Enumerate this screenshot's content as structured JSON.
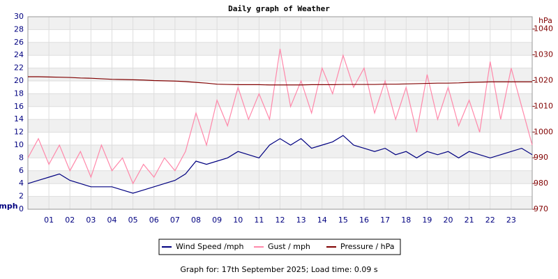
{
  "chart_data": {
    "type": "line",
    "title": "Daily graph of Weather",
    "ylabel": "mph",
    "y2label": "hPa",
    "caption": "Graph for: 17th September 2025; Load time: 0.09 s",
    "x": [
      0,
      0.5,
      1,
      1.5,
      2,
      2.5,
      3,
      3.5,
      4,
      4.5,
      5,
      5.5,
      6,
      6.5,
      7,
      7.5,
      8,
      8.5,
      9,
      9.5,
      10,
      10.5,
      11,
      11.5,
      12,
      12.5,
      13,
      13.5,
      14,
      14.5,
      15,
      15.5,
      16,
      16.5,
      17,
      17.5,
      18,
      18.5,
      19,
      19.5,
      20,
      20.5,
      21,
      21.5,
      22,
      22.5,
      23,
      23.5,
      24
    ],
    "xlim": [
      0,
      24
    ],
    "xticks": [
      {
        "value": 1,
        "label": "01"
      },
      {
        "value": 2,
        "label": "02"
      },
      {
        "value": 3,
        "label": "03"
      },
      {
        "value": 4,
        "label": "04"
      },
      {
        "value": 5,
        "label": "05"
      },
      {
        "value": 6,
        "label": "06"
      },
      {
        "value": 7,
        "label": "07"
      },
      {
        "value": 8,
        "label": "08"
      },
      {
        "value": 9,
        "label": "09"
      },
      10,
      11,
      12,
      13,
      14,
      15,
      16,
      17,
      18,
      19,
      20,
      21,
      22,
      23
    ],
    "ylim": [
      0,
      30
    ],
    "yticks": [
      0,
      2,
      4,
      6,
      8,
      10,
      12,
      14,
      16,
      18,
      20,
      22,
      24,
      26,
      28,
      30
    ],
    "y2lim": [
      970,
      1044.8
    ],
    "y2ticks": [
      970,
      980,
      990,
      1000,
      1010,
      1020,
      1030,
      1040
    ],
    "grid": true,
    "series": [
      {
        "name": "Wind Speed /mph",
        "color": "#000080",
        "values": [
          4,
          4.5,
          5,
          5.5,
          4.5,
          4,
          3.5,
          3.5,
          3.5,
          3,
          2.5,
          3,
          3.5,
          4,
          4.5,
          5.5,
          7.5,
          7,
          7.5,
          8,
          9,
          8.5,
          8,
          10,
          11,
          10,
          11,
          9.5,
          10,
          10.5,
          11.5,
          10,
          9.5,
          9,
          9.5,
          8.5,
          9,
          8,
          9,
          8.5,
          9,
          8,
          9,
          8.5,
          8,
          8.5,
          9,
          9.5,
          8.5
        ]
      },
      {
        "name": "Gust / mph",
        "color": "#ff88aa",
        "values": [
          8,
          11,
          7,
          10,
          6,
          9,
          5,
          10,
          6,
          8,
          4,
          7,
          5,
          8,
          6,
          9,
          15,
          10,
          17,
          13,
          19,
          14,
          18,
          14,
          25,
          16,
          20,
          15,
          22,
          18,
          24,
          19,
          22,
          15,
          20,
          14,
          19,
          12,
          21,
          14,
          19,
          13,
          17,
          12,
          23,
          14,
          22,
          16,
          10
        ]
      },
      {
        "name": "Pressure / hPa",
        "color": "#800000",
        "axis": "y2",
        "values": [
          1021.5,
          1021.5,
          1021.4,
          1021.3,
          1021.2,
          1021,
          1020.9,
          1020.7,
          1020.5,
          1020.4,
          1020.3,
          1020.2,
          1020,
          1019.9,
          1019.8,
          1019.6,
          1019.3,
          1019,
          1018.6,
          1018.5,
          1018.4,
          1018.4,
          1018.4,
          1018.3,
          1018.3,
          1018.3,
          1018.3,
          1018.4,
          1018.4,
          1018.4,
          1018.5,
          1018.5,
          1018.5,
          1018.5,
          1018.6,
          1018.6,
          1018.7,
          1018.8,
          1018.9,
          1019,
          1019,
          1019.1,
          1019.3,
          1019.4,
          1019.5,
          1019.5,
          1019.5,
          1019.5,
          1019.5
        ]
      }
    ]
  }
}
